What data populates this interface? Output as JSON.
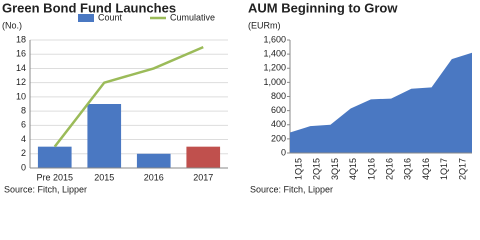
{
  "chart_data": [
    {
      "type": "bar",
      "title": "Green Bond Fund Launches",
      "y_label": "(No.)",
      "categories": [
        "Pre 2015",
        "2015",
        "2016",
        "2017"
      ],
      "series": [
        {
          "name": "Count",
          "color": "#4a78c2",
          "colors": [
            "#4a78c2",
            "#4a78c2",
            "#4a78c2",
            "#c0504d"
          ],
          "values": [
            3,
            9,
            2,
            3
          ]
        },
        {
          "name": "Cumulative",
          "color": "#9bbb59",
          "type": "line",
          "values": [
            3,
            12,
            14,
            17
          ]
        }
      ],
      "ylim": [
        0,
        18
      ],
      "yticks": [
        0,
        2,
        4,
        6,
        8,
        10,
        12,
        14,
        16,
        18
      ],
      "grid": true,
      "legend": "top",
      "source": "Source: Fitch, Lipper"
    },
    {
      "type": "area",
      "title": "AUM Beginning to Grow",
      "y_label": "(EURm)",
      "categories": [
        "1Q15",
        "2Q15",
        "3Q15",
        "4Q15",
        "1Q16",
        "2Q16",
        "3Q16",
        "4Q16",
        "1Q17",
        "2Q17"
      ],
      "values": [
        290,
        380,
        400,
        630,
        760,
        770,
        910,
        930,
        1330,
        1420
      ],
      "color": "#4a78c2",
      "ylim": [
        0,
        1600
      ],
      "yticks": [
        0,
        200,
        400,
        600,
        800,
        {
          "value": 1000,
          "label": "1,000"
        },
        {
          "value": 1200,
          "label": "1,200"
        },
        {
          "value": 1400,
          "label": "1,400"
        },
        {
          "value": 1600,
          "label": "1,600"
        }
      ],
      "grid": false,
      "source": "Source: Fitch, Lipper"
    }
  ]
}
